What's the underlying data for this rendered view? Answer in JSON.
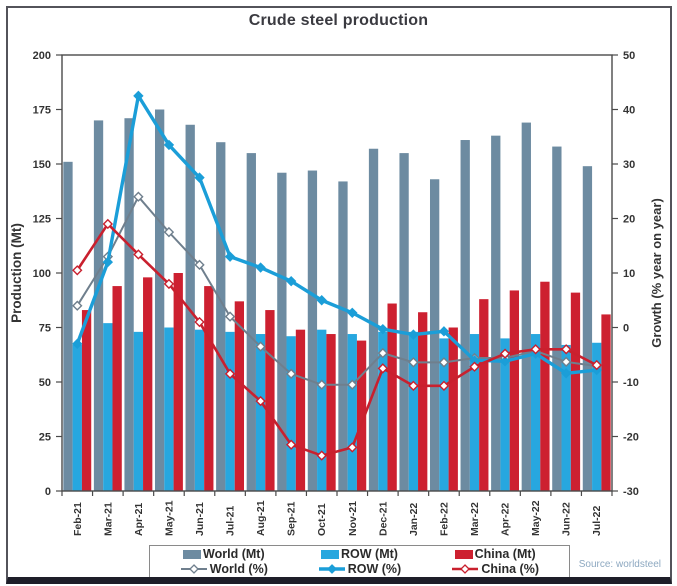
{
  "chart_data": {
    "type": "combo-bar-line",
    "title": "Crude steel production",
    "source": "Source: worldsteel",
    "categories": [
      "Feb-21",
      "Mar-21",
      "Apr-21",
      "May-21",
      "Jun-21",
      "Jul-21",
      "Aug-21",
      "Sep-21",
      "Oct-21",
      "Nov-21",
      "Dec-21",
      "Jan-22",
      "Feb-22",
      "Mar-22",
      "Apr-22",
      "May-22",
      "Jun-22",
      "Jul-22"
    ],
    "ylabel_left": "Production (Mt)",
    "ylabel_right": "Growth (% year on year)",
    "left_axis": {
      "min": 0,
      "max": 200,
      "ticks": [
        0,
        25,
        50,
        75,
        100,
        125,
        150,
        175,
        200
      ]
    },
    "right_axis": {
      "min": -30,
      "max": 50,
      "ticks": [
        -30,
        -20,
        -10,
        0,
        10,
        20,
        30,
        40,
        50
      ]
    },
    "legend_position": "bottom",
    "grid": false,
    "colors": {
      "world_bar": "#6d8ba1",
      "row_bar": "#27a7df",
      "china_bar": "#cd2030",
      "world_line": "#6f7f8d",
      "row_line": "#1b9ed8",
      "china_line": "#c9202e",
      "axis": "#4a4a4a",
      "tick_text": "#333333"
    },
    "series": [
      {
        "name": "World (Mt)",
        "type": "bar",
        "axis": "left",
        "color": "#6d8ba1",
        "values": [
          151,
          170,
          171,
          175,
          168,
          160,
          155,
          146,
          147,
          142,
          157,
          155,
          143,
          161,
          163,
          169,
          158,
          149
        ]
      },
      {
        "name": "ROW (Mt)",
        "type": "bar",
        "axis": "left",
        "color": "#27a7df",
        "values": [
          67,
          77,
          73,
          75,
          74,
          73,
          72,
          71,
          74,
          72,
          73,
          73,
          70,
          72,
          70,
          72,
          67,
          68
        ]
      },
      {
        "name": "China (Mt)",
        "type": "bar",
        "axis": "left",
        "color": "#cd2030",
        "values": [
          83,
          94,
          98,
          100,
          94,
          87,
          83,
          74,
          72,
          69,
          86,
          82,
          75,
          88,
          92,
          96,
          91,
          81
        ]
      },
      {
        "name": "World (%)",
        "type": "line",
        "axis": "right",
        "color": "#6f7f8d",
        "marker_fill": "#ffffff",
        "line_width": 2,
        "values": [
          4,
          13,
          24,
          17.5,
          11.5,
          2,
          -3.5,
          -8.5,
          -10.5,
          -10.5,
          -4.7,
          -6.4,
          -6.4,
          -5.6,
          -5.6,
          -4.3,
          -6.3,
          -7.1
        ]
      },
      {
        "name": "ROW (%)",
        "type": "line",
        "axis": "right",
        "color": "#1b9ed8",
        "marker_fill": "#1b9ed8",
        "line_width": 3.4,
        "values": [
          -3,
          12,
          42.5,
          33.5,
          27.5,
          13,
          11,
          8.5,
          5,
          2.7,
          -0.3,
          -1.3,
          -0.7,
          -6,
          -6.2,
          -4.8,
          -8.4,
          -7.8
        ]
      },
      {
        "name": "China (%)",
        "type": "line",
        "axis": "right",
        "color": "#c9202e",
        "marker_fill": "#ffffff",
        "line_width": 2.6,
        "values": [
          10.5,
          19,
          13.4,
          8,
          1,
          -8.5,
          -13.5,
          -21.5,
          -23.5,
          -22,
          -7.5,
          -10.7,
          -10.7,
          -7.2,
          -4.8,
          -4,
          -4,
          -6.9
        ]
      }
    ]
  }
}
